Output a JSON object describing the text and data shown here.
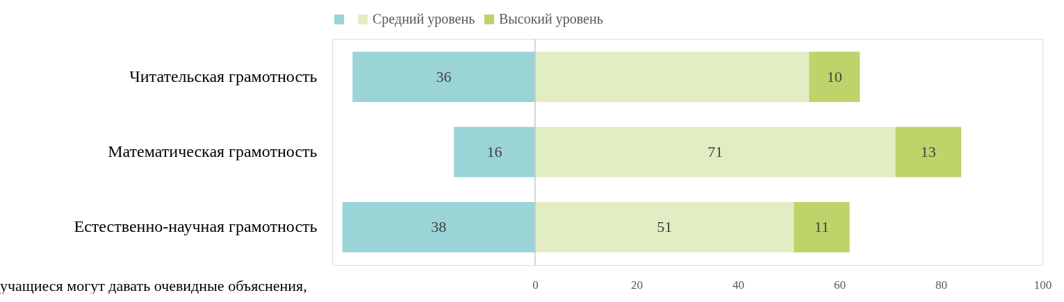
{
  "chart_data": {
    "type": "bar",
    "orientation": "horizontal",
    "stacked": true,
    "categories": [
      "Читательская грамотность",
      "Математическая грамотность",
      "Естественно-научная грамотность"
    ],
    "series": [
      {
        "color": "#9bd4d7",
        "values": [
          36,
          16,
          38
        ],
        "base": [
          -36,
          -16,
          -38
        ],
        "value_labels": [
          "36",
          "16",
          "38"
        ]
      },
      {
        "name": "Средний уровень",
        "color": "#e2edc3",
        "values": [
          54,
          71,
          51
        ],
        "value_labels": [
          null,
          "71",
          "51"
        ]
      },
      {
        "name": "Высокий уровень",
        "color": "#bdd46a",
        "values": [
          10,
          13,
          11
        ],
        "value_labels": [
          "10",
          "13",
          "11"
        ]
      }
    ],
    "xlim": [
      -40,
      100
    ],
    "xticks": [
      0,
      20,
      40,
      60,
      80,
      100
    ],
    "grid": false,
    "legend": "top",
    "ref_lines": [
      {
        "axis": "x",
        "value": 0,
        "color": "#c8c8c8"
      }
    ],
    "annotations": [
      "учащиеся могут давать очевидные объяснения,"
    ]
  }
}
